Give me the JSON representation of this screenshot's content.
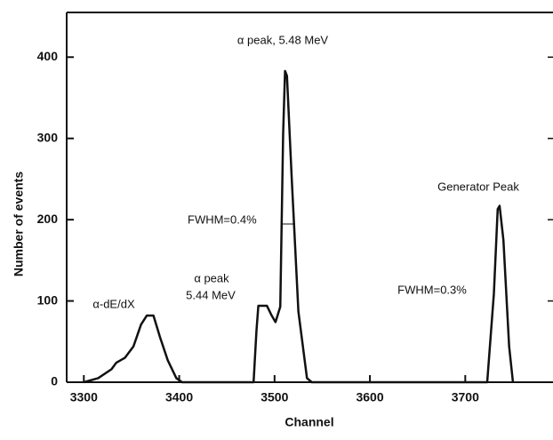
{
  "chart_data": {
    "type": "line",
    "x_label": "Channel",
    "y_label": "Number of events",
    "annotations": [
      "α peak, 5.48 MeV",
      "Generator Peak",
      "FWHM=0.4%",
      "α peak",
      "5.44 MeV",
      "α-dE/dX",
      "FWHM=0.3%"
    ],
    "x": [
      3300,
      3315,
      3329,
      3334,
      3343,
      3352,
      3360,
      3366,
      3373,
      3380,
      3388,
      3397,
      3403,
      3478,
      3481,
      3483,
      3492,
      3497,
      3501,
      3506,
      3509,
      3511,
      3513,
      3518,
      3525,
      3534,
      3539,
      3723,
      3730,
      3734,
      3736,
      3740,
      3746,
      3750
    ],
    "series": [
      {
        "color": "#111111",
        "values": [
          0,
          5,
          16,
          24,
          30,
          44,
          71,
          82,
          82,
          55,
          27,
          5,
          0,
          0,
          63,
          94,
          94,
          82,
          74,
          93,
          306,
          383,
          377,
          251,
          87,
          5,
          0,
          0,
          109,
          213,
          217,
          175,
          44,
          0
        ]
      }
    ],
    "xlim": [
      3282,
      3792
    ],
    "ylim": [
      0,
      455
    ],
    "xticks": [
      3300,
      3400,
      3500,
      3600,
      3700
    ],
    "yticks": [
      0,
      100,
      200,
      300,
      400
    ]
  }
}
